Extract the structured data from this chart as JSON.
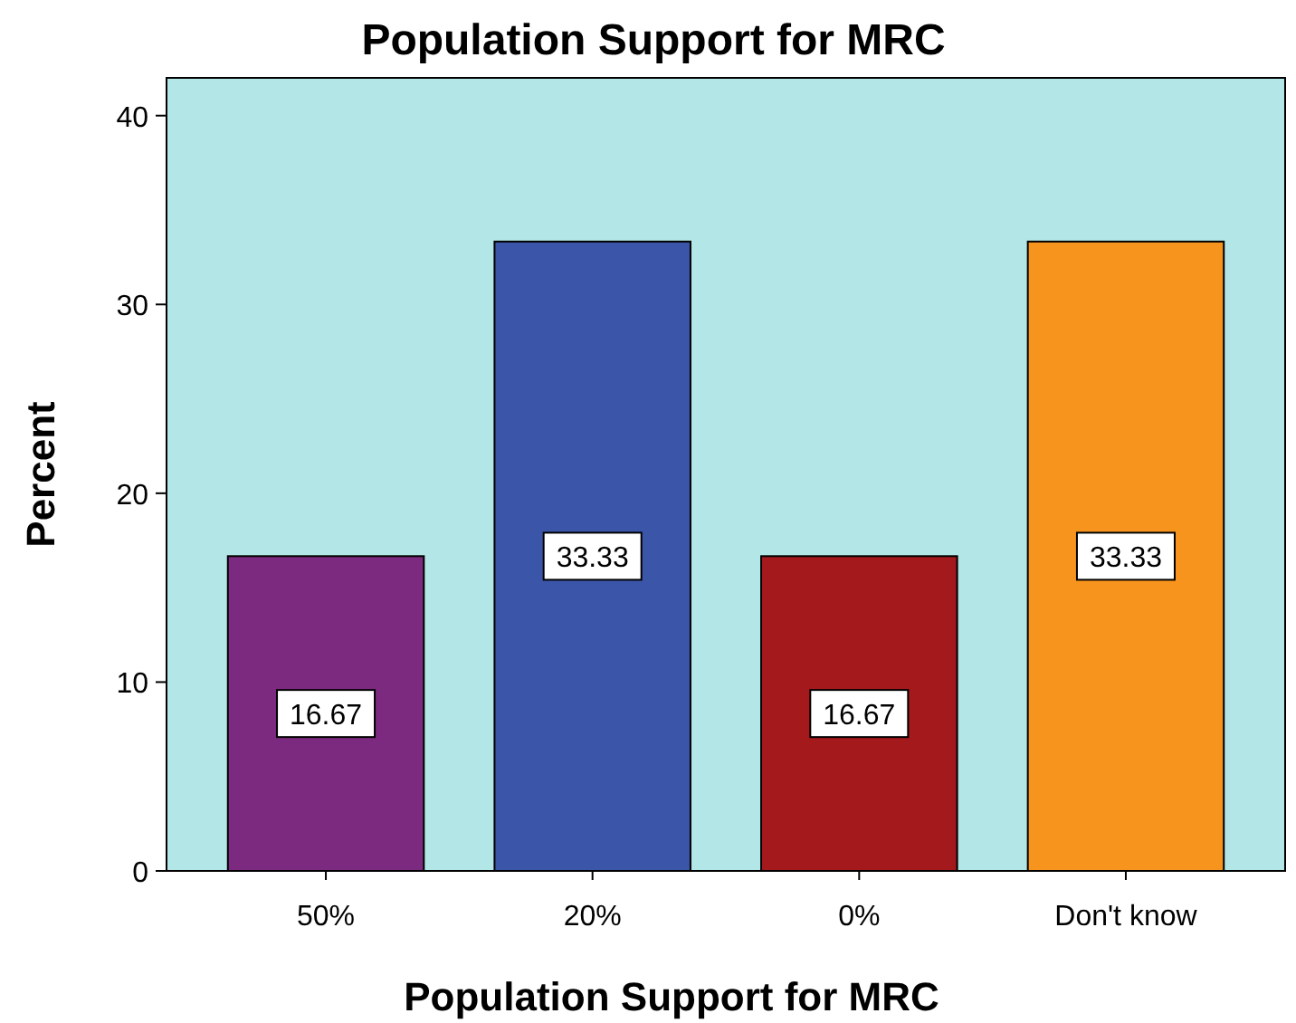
{
  "chart_data": {
    "type": "bar",
    "title": "Population Support for MRC",
    "xlabel": "Population Support for MRC",
    "ylabel": "Percent",
    "categories": [
      "50%",
      "20%",
      "0%",
      "Don't know"
    ],
    "values": [
      16.67,
      33.33,
      16.67,
      33.33
    ],
    "colors": [
      "#7b2a7f",
      "#3b55a8",
      "#a3191c",
      "#f7941d"
    ],
    "ylim": [
      0,
      42
    ],
    "yticks": [
      0,
      10,
      20,
      30,
      40
    ],
    "grid": false,
    "data_labels": true
  }
}
